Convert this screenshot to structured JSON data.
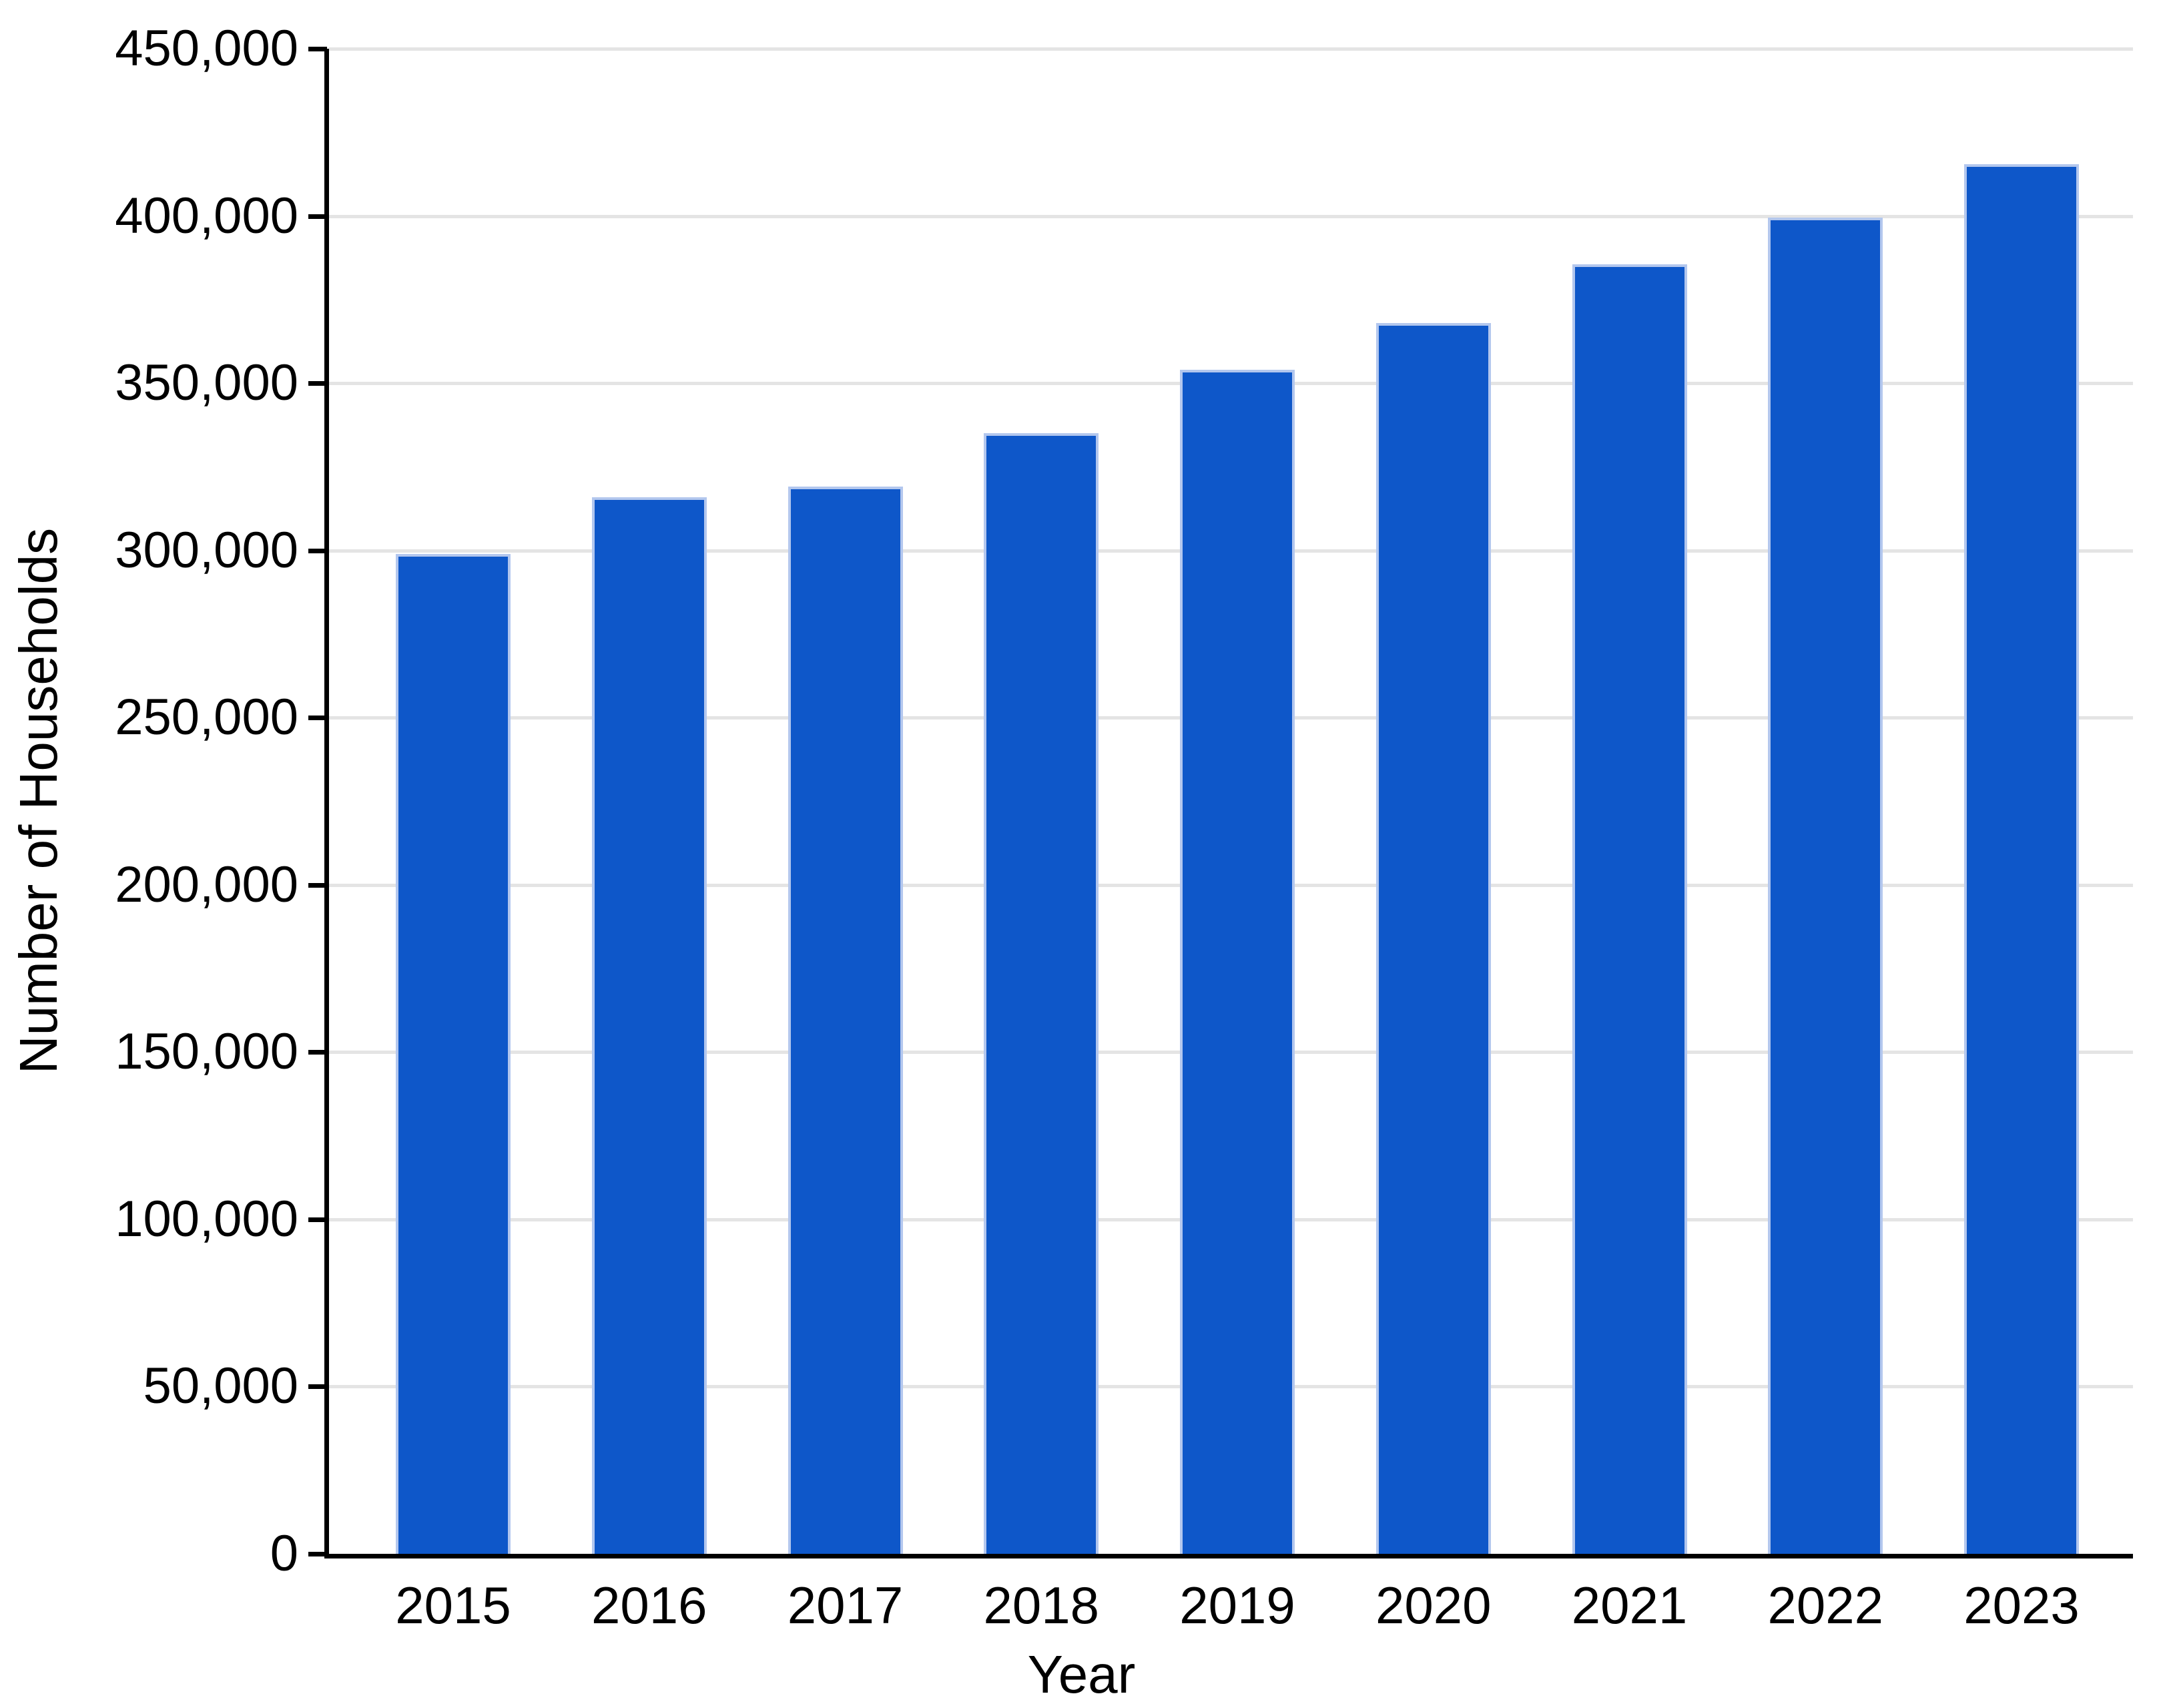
{
  "chart_data": {
    "type": "bar",
    "title": "",
    "xlabel": "Year",
    "ylabel": "Number of Households",
    "categories": [
      "2015",
      "2016",
      "2017",
      "2018",
      "2019",
      "2020",
      "2021",
      "2022",
      "2023"
    ],
    "values": [
      299000,
      316000,
      319000,
      335000,
      354000,
      368000,
      385500,
      399500,
      415500
    ],
    "ylim": [
      0,
      450000
    ],
    "ytick_step": 50000,
    "ytick_labels": [
      "0",
      "50,000",
      "100,000",
      "150,000",
      "200,000",
      "250,000",
      "300,000",
      "350,000",
      "400,000",
      "450,000"
    ],
    "grid": true,
    "legend_position": "none",
    "bar_color": "#0e57c9",
    "bar_edge_color": "#b3c7ee",
    "gridline_color": "#e4e4e4",
    "axis_color": "#000000",
    "text_color": "#000000"
  }
}
